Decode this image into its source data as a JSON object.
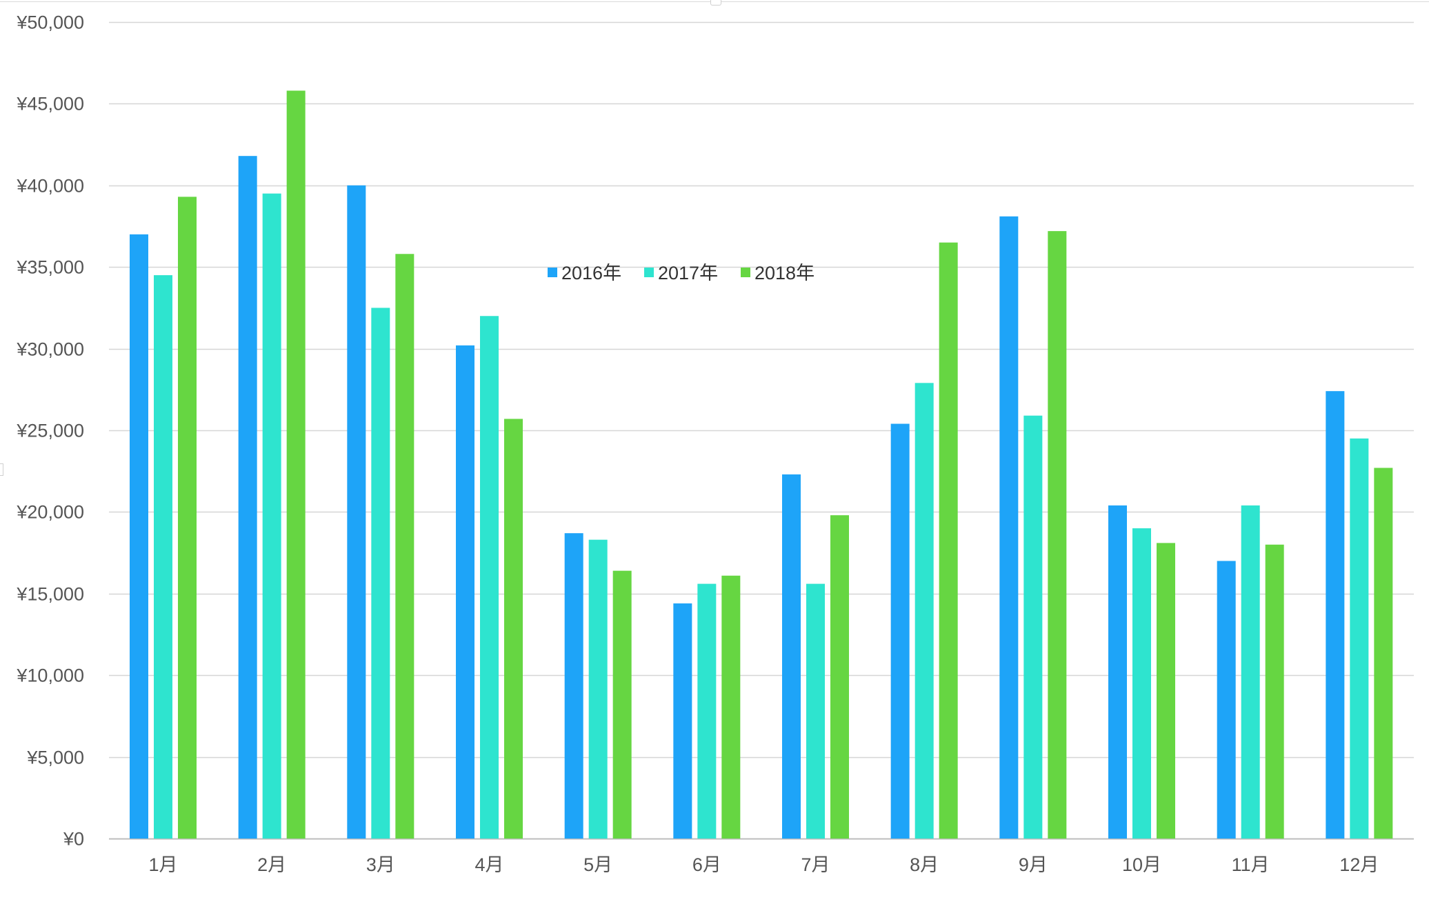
{
  "chart_data": {
    "type": "bar",
    "title": "",
    "xlabel": "",
    "ylabel": "",
    "categories": [
      "1月",
      "2月",
      "3月",
      "4月",
      "5月",
      "6月",
      "7月",
      "8月",
      "9月",
      "10月",
      "11月",
      "12月"
    ],
    "series": [
      {
        "name": "2016年",
        "color": "#1ea4f8",
        "values": [
          37000,
          41800,
          40000,
          30200,
          18700,
          14400,
          22300,
          25400,
          38100,
          20400,
          17000,
          27400
        ]
      },
      {
        "name": "2017年",
        "color": "#2ee4cf",
        "values": [
          34500,
          39500,
          32500,
          32000,
          18300,
          15600,
          15600,
          27900,
          25900,
          19000,
          20400,
          24500
        ]
      },
      {
        "name": "2018年",
        "color": "#66d642",
        "values": [
          39300,
          45800,
          35800,
          25700,
          16400,
          16100,
          19800,
          36500,
          37200,
          18100,
          18000,
          22700
        ]
      }
    ],
    "ylim": [
      0,
      50000
    ],
    "y_ticks": [
      0,
      5000,
      10000,
      15000,
      20000,
      25000,
      30000,
      35000,
      40000,
      45000,
      50000
    ],
    "y_tick_labels": [
      "¥0",
      "¥5,000",
      "¥10,000",
      "¥15,000",
      "¥20,000",
      "¥25,000",
      "¥30,000",
      "¥35,000",
      "¥40,000",
      "¥45,000",
      "¥50,000"
    ],
    "grid": true,
    "legend_position": "center-top",
    "colors": {
      "grid": "#d6d6d6",
      "axis": "#bdbdbd",
      "tick_text": "#555555"
    }
  }
}
